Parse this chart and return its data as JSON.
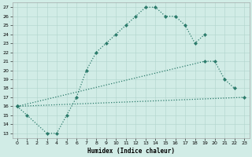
{
  "xlabel": "Humidex (Indice chaleur)",
  "background_color": "#d1ece6",
  "grid_color": "#b0d4cc",
  "line_color": "#2a7a6a",
  "xlim": [
    -0.5,
    23.5
  ],
  "ylim": [
    12.5,
    27.5
  ],
  "yticks": [
    13,
    14,
    15,
    16,
    17,
    18,
    19,
    20,
    21,
    22,
    23,
    24,
    25,
    26,
    27
  ],
  "xticks": [
    0,
    1,
    2,
    3,
    4,
    5,
    6,
    7,
    8,
    9,
    10,
    11,
    12,
    13,
    14,
    15,
    16,
    17,
    18,
    19,
    20,
    21,
    22,
    23
  ],
  "series": [
    {
      "x": [
        0,
        1,
        3,
        4,
        5,
        6,
        7,
        8,
        9,
        10,
        11,
        12,
        13,
        14,
        15,
        16,
        17,
        18,
        19
      ],
      "y": [
        16,
        15,
        13,
        13,
        15,
        17,
        20,
        22,
        23,
        24,
        25,
        26,
        27,
        27,
        26,
        26,
        25,
        23,
        24
      ]
    },
    {
      "x": [
        0,
        19,
        20,
        21,
        22
      ],
      "y": [
        16,
        21,
        21,
        19,
        18
      ]
    },
    {
      "x": [
        0,
        23
      ],
      "y": [
        16,
        17
      ]
    }
  ]
}
